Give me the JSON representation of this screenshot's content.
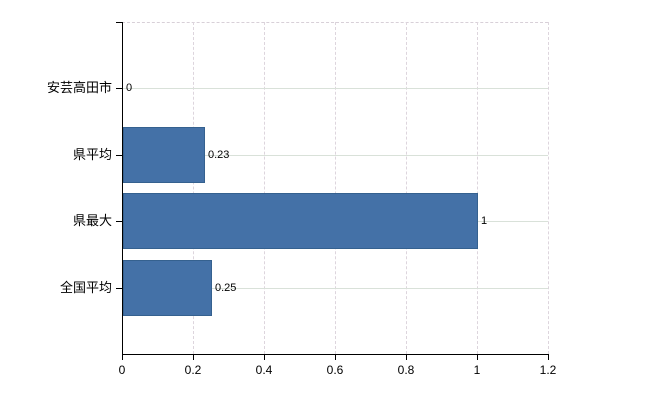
{
  "chart_data": {
    "type": "bar",
    "orientation": "horizontal",
    "title": "",
    "xlabel": "",
    "ylabel": "",
    "categories": [
      "安芸高田市",
      "県平均",
      "県最大",
      "全国平均"
    ],
    "values": [
      0,
      0.23,
      1,
      0.25
    ],
    "data_labels": [
      "0",
      "0.23",
      "1",
      "0.25"
    ],
    "x_ticks": [
      0,
      0.2,
      0.4,
      0.6,
      0.8,
      1,
      1.2
    ],
    "x_tick_labels": [
      "0",
      "0.2",
      "0.4",
      "0.6",
      "0.8",
      "1",
      "1.2"
    ],
    "xlim": [
      0,
      1.2
    ],
    "grid": true,
    "legend": false
  },
  "colors": {
    "background": "#ffffff",
    "bar_fill": "#4471a7",
    "bar_border": "#35618f",
    "h_gridline": "#d9e1d9",
    "v_gridline": "#ddd5dd",
    "plot_top_border": "#d8d0d8",
    "axis": "#000000",
    "text": "#000000"
  }
}
